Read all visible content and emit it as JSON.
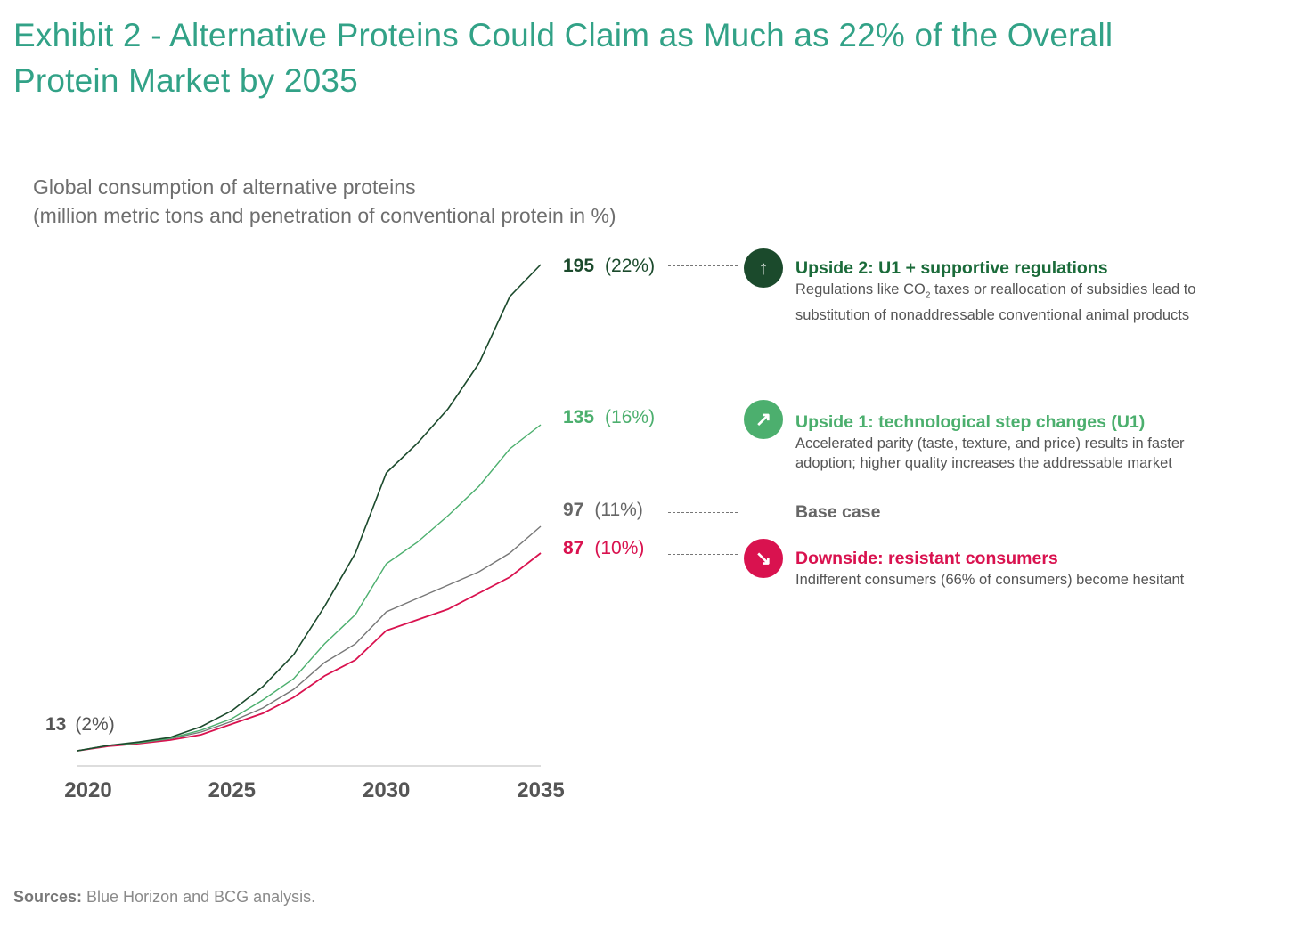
{
  "title": "Exhibit 2 - Alternative Proteins Could Claim as Much as 22% of the Overall Protein Market by 2035",
  "subtitle_line1": "Global consumption of alternative proteins",
  "subtitle_line2": "(million metric tons and penetration of conventional protein in %)",
  "colors": {
    "title": "#32a287",
    "upside2": "#1b4a2c",
    "upside1": "#4caf6e",
    "base": "#777777",
    "downside": "#d9124f"
  },
  "chart_data": {
    "type": "line",
    "title": "Global consumption of alternative proteins",
    "ylabel": "million metric tons and penetration of conventional protein in %",
    "x": [
      2020,
      2021,
      2022,
      2023,
      2024,
      2025,
      2026,
      2027,
      2028,
      2029,
      2030,
      2031,
      2032,
      2033,
      2034,
      2035
    ],
    "xticks": [
      "2020",
      "2025",
      "2030",
      "2035"
    ],
    "ylim": [
      0,
      200
    ],
    "grid": false,
    "start_label": {
      "value": "13",
      "pct": "(2%)"
    },
    "series": [
      {
        "key": "upside2",
        "name": "Upside 2: U1 + supportive regulations",
        "values": [
          13,
          15,
          16.3,
          18,
          22,
          28,
          37,
          49,
          67,
          87,
          117,
          128,
          141,
          158,
          183,
          195
        ],
        "end_value": "195",
        "end_pct": "(22%)"
      },
      {
        "key": "upside1",
        "name": "Upside 1: technological step changes (U1)",
        "values": [
          13,
          15,
          16,
          17.7,
          20.7,
          25,
          32,
          40,
          53,
          64,
          83,
          91,
          101,
          112,
          126,
          135
        ],
        "end_value": "135",
        "end_pct": "(16%)"
      },
      {
        "key": "base",
        "name": "Base case",
        "values": [
          13,
          15,
          16,
          17.5,
          20,
          24,
          29,
          36,
          46,
          53,
          65,
          70,
          75,
          80,
          87,
          97
        ],
        "end_value": "97",
        "end_pct": "(11%)"
      },
      {
        "key": "downside",
        "name": "Downside: resistant consumers",
        "values": [
          13,
          14.7,
          15.7,
          17,
          19,
          23,
          27,
          33,
          41,
          47,
          58,
          62,
          66,
          72,
          78,
          87
        ],
        "end_value": "87",
        "end_pct": "(10%)"
      }
    ]
  },
  "legend": {
    "upside2": {
      "title": "Upside 2: U1 + supportive regulations",
      "desc_pre": "Regulations like CO",
      "desc_sub": "2",
      "desc_post": " taxes or reallocation of subsidies lead to substitution of nonaddressable conventional animal products",
      "icon": "arrow-up-icon",
      "glyph": "↑"
    },
    "upside1": {
      "title": "Upside 1: technological step changes (U1)",
      "desc": "Accelerated parity (taste, texture, and price) results in faster adoption; higher quality increases the addressable market",
      "icon": "arrow-up-right-icon",
      "glyph": "↗"
    },
    "base": {
      "title": "Base case"
    },
    "downside": {
      "title": "Downside: resistant consumers",
      "desc": "Indifferent consumers (66% of consumers) become hesitant",
      "icon": "arrow-down-right-icon",
      "glyph": "↘"
    }
  },
  "source_label": "Sources:",
  "source_text": " Blue Horizon and BCG analysis."
}
